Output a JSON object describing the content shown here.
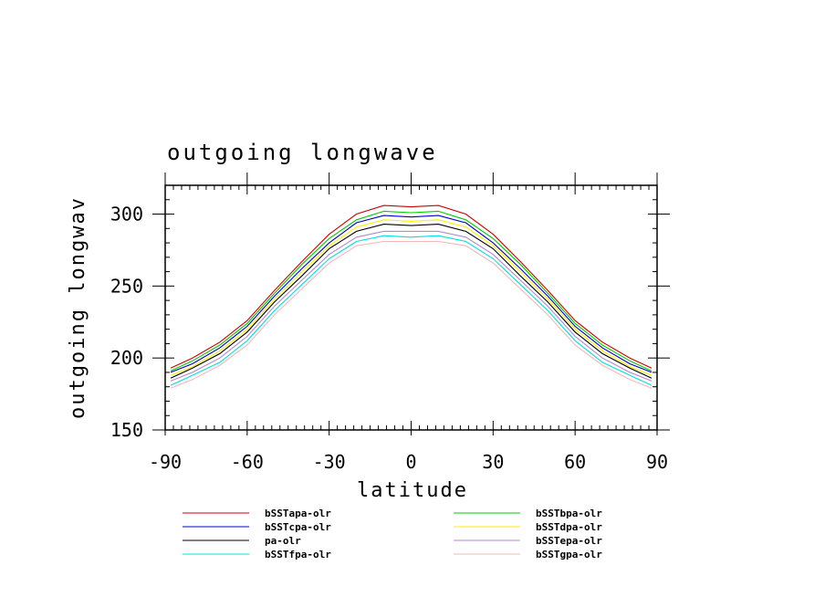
{
  "chart_data": {
    "type": "line",
    "title": "outgoing longwave",
    "xlabel": "latitude",
    "ylabel": "outgoing longwav",
    "xlim": [
      -90,
      90
    ],
    "ylim": [
      150,
      320
    ],
    "x_ticks": [
      -90,
      -60,
      -30,
      0,
      30,
      60,
      90
    ],
    "y_ticks": [
      150,
      200,
      250,
      300
    ],
    "x_tick_labels": [
      "-90",
      "-60",
      "-30",
      "0",
      "30",
      "60",
      "90"
    ],
    "y_tick_labels": [
      "150",
      "200",
      "250",
      "300"
    ],
    "grid": false,
    "legend_position": "bottom",
    "x": [
      -88,
      -80,
      -70,
      -60,
      -50,
      -40,
      -30,
      -20,
      -10,
      0,
      10,
      20,
      30,
      40,
      50,
      60,
      70,
      80,
      88
    ],
    "series": [
      {
        "name": "bSSTapa-olr",
        "color": "#cc0000",
        "values": [
          193,
          200,
          211,
          226,
          247,
          267,
          286,
          300,
          306,
          305,
          306,
          300,
          286,
          267,
          247,
          226,
          211,
          200,
          193
        ]
      },
      {
        "name": "bSSTbpa-olr",
        "color": "#00cc00",
        "values": [
          191,
          198,
          209,
          224,
          245,
          265,
          283,
          296,
          302,
          301,
          302,
          296,
          283,
          265,
          245,
          224,
          209,
          198,
          191
        ]
      },
      {
        "name": "bSSTcpa-olr",
        "color": "#0000cc",
        "values": [
          190,
          196,
          207,
          222,
          243,
          262,
          280,
          294,
          299,
          298,
          299,
          294,
          280,
          262,
          243,
          222,
          207,
          196,
          190
        ]
      },
      {
        "name": "bSSTdpa-olr",
        "color": "#ffee00",
        "values": [
          188,
          194,
          205,
          220,
          241,
          260,
          278,
          291,
          296,
          295,
          296,
          291,
          278,
          260,
          241,
          220,
          205,
          194,
          188
        ]
      },
      {
        "name": "pa-olr",
        "color": "#000000",
        "values": [
          186,
          193,
          203,
          218,
          239,
          257,
          276,
          288,
          293,
          292,
          293,
          288,
          276,
          257,
          239,
          218,
          203,
          193,
          186
        ]
      },
      {
        "name": "bSSTepa-olr",
        "color": "#b088cc",
        "values": [
          184,
          190,
          200,
          215,
          236,
          254,
          272,
          284,
          288,
          288,
          288,
          284,
          272,
          254,
          236,
          215,
          200,
          190,
          184
        ]
      },
      {
        "name": "bSSTfpa-olr",
        "color": "#00e0e0",
        "values": [
          181,
          188,
          197,
          212,
          233,
          251,
          269,
          281,
          285,
          284,
          285,
          281,
          269,
          251,
          233,
          212,
          197,
          188,
          181
        ]
      },
      {
        "name": "bSSTgpa-olr",
        "color": "#f0b8b8",
        "values": [
          179,
          185,
          195,
          209,
          230,
          248,
          266,
          278,
          281,
          281,
          281,
          278,
          266,
          248,
          230,
          209,
          195,
          185,
          179
        ]
      }
    ]
  },
  "legend": {
    "items": [
      {
        "name": "bSSTapa-olr",
        "color": "#cc0000"
      },
      {
        "name": "bSSTbpa-olr",
        "color": "#00cc00"
      },
      {
        "name": "bSSTcpa-olr",
        "color": "#0000cc"
      },
      {
        "name": "bSSTdpa-olr",
        "color": "#ffee00"
      },
      {
        "name": "pa-olr",
        "color": "#000000"
      },
      {
        "name": "bSSTepa-olr",
        "color": "#b088cc"
      },
      {
        "name": "bSSTfpa-olr",
        "color": "#00e0e0"
      },
      {
        "name": "bSSTgpa-olr",
        "color": "#f0b8b8"
      }
    ]
  }
}
